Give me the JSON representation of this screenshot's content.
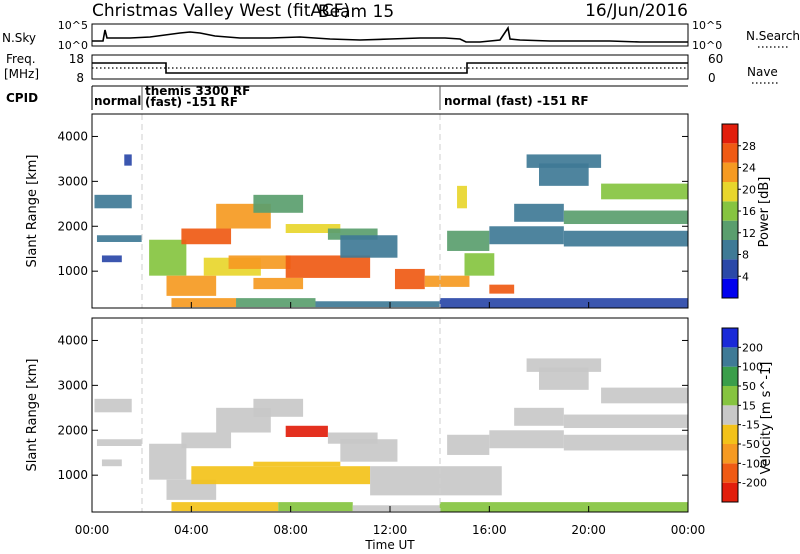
{
  "header": {
    "title": "Christmas Valley West (fitACF)",
    "beam": "Beam 15",
    "date": "16/Jun/2016"
  },
  "nsky_panel": {
    "label": "N.Sky",
    "ytick_labels": [
      "10^5",
      "10^0"
    ],
    "right_label": "N.Search",
    "right_ytick_labels": [
      "10^5",
      "10^0"
    ]
  },
  "freq_panel": {
    "label_line1": "Freq.",
    "label_line2": "[MHz]",
    "ytick_labels": [
      "18",
      "8"
    ],
    "right_label": "Nave",
    "right_ytick_labels": [
      "60",
      "0"
    ]
  },
  "cpid_panel": {
    "label": "CPID",
    "segments": [
      {
        "start_hour": 0,
        "end_hour": 2,
        "text": "normal",
        "text2": ""
      },
      {
        "start_hour": 2,
        "end_hour": 14,
        "text": "themis 3300 RF",
        "text2": "(fast) -151 RF"
      },
      {
        "start_hour": 14,
        "end_hour": 24,
        "text": "normal (fast) -151 RF",
        "text2": ""
      }
    ]
  },
  "x_axis": {
    "label": "Time UT",
    "tick_labels": [
      "00:00",
      "04:00",
      "08:00",
      "12:00",
      "16:00",
      "20:00",
      "00:00"
    ]
  },
  "chart_data": [
    {
      "type": "heatmap",
      "name": "power",
      "ylabel": "Slant Range [km]",
      "yticks": [
        1000,
        2000,
        3000,
        4000
      ],
      "ylim": [
        180,
        4500
      ],
      "xlim_hours": [
        0,
        24
      ],
      "colorbar": {
        "label": "Power [dB]",
        "range": [
          0,
          32
        ],
        "tick_labels": [
          "4",
          "8",
          "12",
          "16",
          "20",
          "24",
          "28"
        ],
        "colors": [
          "#0000ee",
          "#2a48a8",
          "#3f7a96",
          "#5a9e6e",
          "#86c440",
          "#e8d62c",
          "#f59a22",
          "#ef5a14",
          "#e21e0c"
        ]
      },
      "regions": [
        {
          "t0": 0.1,
          "t1": 1.6,
          "r0": 2400,
          "r1": 2700,
          "value": 8
        },
        {
          "t0": 0.2,
          "t1": 2.0,
          "r0": 1650,
          "r1": 1800,
          "value": 9
        },
        {
          "t0": 0.4,
          "t1": 1.2,
          "r0": 1200,
          "r1": 1350,
          "value": 7
        },
        {
          "t0": 1.3,
          "t1": 1.6,
          "r0": 3350,
          "r1": 3600,
          "value": 7
        },
        {
          "t0": 2.3,
          "t1": 3.8,
          "r0": 900,
          "r1": 1700,
          "value": 15
        },
        {
          "t0": 3.0,
          "t1": 5.0,
          "r0": 450,
          "r1": 900,
          "value": 22
        },
        {
          "t0": 3.6,
          "t1": 5.6,
          "r0": 1600,
          "r1": 1950,
          "value": 26
        },
        {
          "t0": 5.0,
          "t1": 7.2,
          "r0": 1950,
          "r1": 2500,
          "value": 22
        },
        {
          "t0": 4.5,
          "t1": 6.8,
          "r0": 900,
          "r1": 1300,
          "value": 20
        },
        {
          "t0": 5.5,
          "t1": 8.0,
          "r0": 1050,
          "r1": 1350,
          "value": 24
        },
        {
          "t0": 6.5,
          "t1": 8.5,
          "r0": 2300,
          "r1": 2700,
          "value": 14
        },
        {
          "t0": 7.8,
          "t1": 10.0,
          "r0": 1850,
          "r1": 2050,
          "value": 18
        },
        {
          "t0": 7.8,
          "t1": 11.2,
          "r0": 850,
          "r1": 1350,
          "value": 28
        },
        {
          "t0": 6.5,
          "t1": 8.5,
          "r0": 600,
          "r1": 850,
          "value": 22
        },
        {
          "t0": 9.5,
          "t1": 11.5,
          "r0": 1700,
          "r1": 1950,
          "value": 12
        },
        {
          "t0": 3.2,
          "t1": 5.8,
          "r0": 200,
          "r1": 400,
          "value": 24
        },
        {
          "t0": 5.8,
          "t1": 9.0,
          "r0": 200,
          "r1": 400,
          "value": 14
        },
        {
          "t0": 9.0,
          "t1": 14.0,
          "r0": 200,
          "r1": 330,
          "value": 8
        },
        {
          "t0": 10.0,
          "t1": 12.3,
          "r0": 1300,
          "r1": 1800,
          "value": 10
        },
        {
          "t0": 12.2,
          "t1": 13.4,
          "r0": 600,
          "r1": 1050,
          "value": 26
        },
        {
          "t0": 13.4,
          "t1": 15.2,
          "r0": 650,
          "r1": 900,
          "value": 24
        },
        {
          "t0": 15.0,
          "t1": 16.2,
          "r0": 900,
          "r1": 1400,
          "value": 16
        },
        {
          "t0": 16.0,
          "t1": 17.0,
          "r0": 500,
          "r1": 700,
          "value": 26
        },
        {
          "t0": 14.3,
          "t1": 16.0,
          "r0": 1450,
          "r1": 1900,
          "value": 11
        },
        {
          "t0": 16.0,
          "t1": 19.0,
          "r0": 1600,
          "r1": 2000,
          "value": 10
        },
        {
          "t0": 17.0,
          "t1": 19.0,
          "r0": 2100,
          "r1": 2500,
          "value": 10
        },
        {
          "t0": 19.0,
          "t1": 24.0,
          "r0": 1550,
          "r1": 1900,
          "value": 9
        },
        {
          "t0": 19.0,
          "t1": 24.0,
          "r0": 2050,
          "r1": 2350,
          "value": 11
        },
        {
          "t0": 20.5,
          "t1": 24.0,
          "r0": 2600,
          "r1": 2950,
          "value": 17
        },
        {
          "t0": 18.0,
          "t1": 20.0,
          "r0": 2900,
          "r1": 3400,
          "value": 9
        },
        {
          "t0": 17.5,
          "t1": 20.5,
          "r0": 3300,
          "r1": 3600,
          "value": 8
        },
        {
          "t0": 14.7,
          "t1": 15.1,
          "r0": 2400,
          "r1": 2900,
          "value": 18
        },
        {
          "t0": 14.0,
          "t1": 24.0,
          "r0": 180,
          "r1": 400,
          "value": 6
        }
      ]
    },
    {
      "type": "heatmap",
      "name": "velocity",
      "ylabel": "Slant Range [km]",
      "yticks": [
        1000,
        2000,
        3000,
        4000
      ],
      "ylim": [
        180,
        4500
      ],
      "xlim_hours": [
        0,
        24
      ],
      "colorbar": {
        "label": "Velocity [m s^-1]",
        "range": [
          -250,
          250
        ],
        "tick_labels": [
          "200",
          "100",
          "50",
          "15",
          "-15",
          "-50",
          "-100",
          "-200"
        ],
        "colors": [
          "#e21e0c",
          "#ef5a14",
          "#f59a22",
          "#f3c21a",
          "#c8c8c8",
          "#86c440",
          "#3a9e4a",
          "#3f7a96",
          "#1a2ad8"
        ]
      },
      "regions": [
        {
          "t0": 0.1,
          "t1": 1.6,
          "r0": 2400,
          "r1": 2700,
          "value": 0
        },
        {
          "t0": 0.2,
          "t1": 2.0,
          "r0": 1650,
          "r1": 1800,
          "value": 0
        },
        {
          "t0": 0.4,
          "t1": 1.2,
          "r0": 1200,
          "r1": 1350,
          "value": 0
        },
        {
          "t0": 2.3,
          "t1": 3.8,
          "r0": 900,
          "r1": 1700,
          "value": 0
        },
        {
          "t0": 3.0,
          "t1": 5.0,
          "r0": 450,
          "r1": 900,
          "value": 0
        },
        {
          "t0": 3.6,
          "t1": 5.6,
          "r0": 1600,
          "r1": 1950,
          "value": 0
        },
        {
          "t0": 5.0,
          "t1": 7.2,
          "r0": 1950,
          "r1": 2500,
          "value": 0
        },
        {
          "t0": 6.5,
          "t1": 8.5,
          "r0": 2300,
          "r1": 2700,
          "value": 0
        },
        {
          "t0": 7.8,
          "t1": 9.5,
          "r0": 1850,
          "r1": 2100,
          "value": -220
        },
        {
          "t0": 4.0,
          "t1": 11.2,
          "r0": 800,
          "r1": 1200,
          "value": -60
        },
        {
          "t0": 6.5,
          "t1": 10.0,
          "r0": 1200,
          "r1": 1300,
          "value": -40
        },
        {
          "t0": 9.5,
          "t1": 11.5,
          "r0": 1700,
          "r1": 1950,
          "value": 0
        },
        {
          "t0": 3.2,
          "t1": 7.5,
          "r0": 200,
          "r1": 400,
          "value": -60
        },
        {
          "t0": 7.5,
          "t1": 10.5,
          "r0": 200,
          "r1": 400,
          "value": 35
        },
        {
          "t0": 10.5,
          "t1": 14.0,
          "r0": 200,
          "r1": 330,
          "value": 25
        },
        {
          "t0": 10.0,
          "t1": 12.3,
          "r0": 1300,
          "r1": 1800,
          "value": 0
        },
        {
          "t0": 11.2,
          "t1": 16.5,
          "r0": 550,
          "r1": 1200,
          "value": 0
        },
        {
          "t0": 14.3,
          "t1": 16.0,
          "r0": 1450,
          "r1": 1900,
          "value": 0
        },
        {
          "t0": 16.0,
          "t1": 19.0,
          "r0": 1600,
          "r1": 2000,
          "value": 0
        },
        {
          "t0": 17.0,
          "t1": 19.0,
          "r0": 2100,
          "r1": 2500,
          "value": 0
        },
        {
          "t0": 19.0,
          "t1": 24.0,
          "r0": 1550,
          "r1": 1900,
          "value": 0
        },
        {
          "t0": 19.0,
          "t1": 24.0,
          "r0": 2050,
          "r1": 2350,
          "value": 0
        },
        {
          "t0": 20.5,
          "t1": 24.0,
          "r0": 2600,
          "r1": 2950,
          "value": 0
        },
        {
          "t0": 18.0,
          "t1": 20.0,
          "r0": 2900,
          "r1": 3400,
          "value": 0
        },
        {
          "t0": 17.5,
          "t1": 20.5,
          "r0": 3300,
          "r1": 3600,
          "value": 0
        },
        {
          "t0": 14.0,
          "t1": 24.0,
          "r0": 180,
          "r1": 400,
          "value": 40
        }
      ]
    }
  ]
}
